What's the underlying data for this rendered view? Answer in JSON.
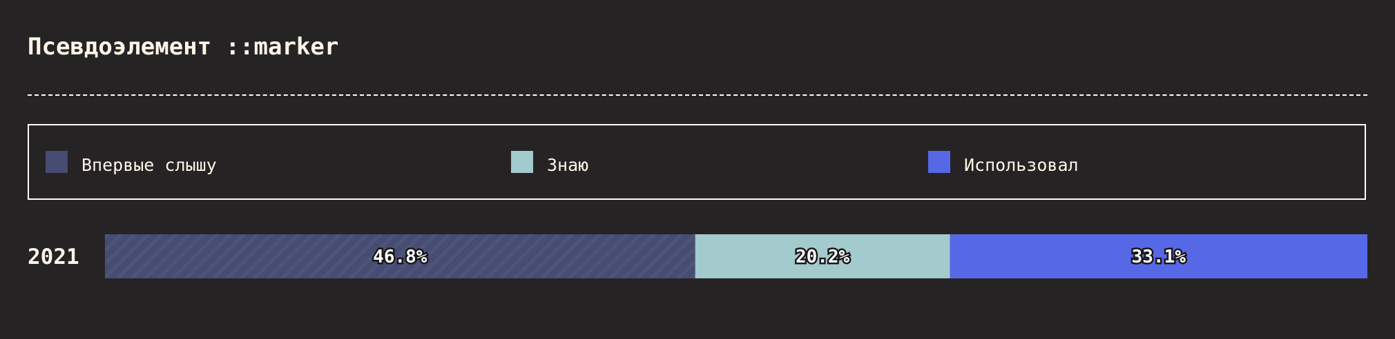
{
  "title": "Псевдоэлемент ::marker",
  "colors": {
    "background": "#262325",
    "text": "#fff5e6",
    "border": "#ffffff"
  },
  "legend": {
    "items": [
      {
        "label": "Впервые слышу",
        "color": "#474c73"
      },
      {
        "label": "Знаю",
        "color": "#a3cacc"
      },
      {
        "label": "Использовал",
        "color": "#5768e6"
      }
    ]
  },
  "chart_data": {
    "type": "bar",
    "stacked": true,
    "orientation": "horizontal",
    "categories": [
      "2021"
    ],
    "series": [
      {
        "name": "Впервые слышу",
        "values": [
          46.8
        ],
        "label": "46.8%",
        "color": "#474c73",
        "pattern": "diagonal-stripes"
      },
      {
        "name": "Знаю",
        "values": [
          20.2
        ],
        "label": "20.2%",
        "color": "#a3cacc"
      },
      {
        "name": "Использовал",
        "values": [
          33.1
        ],
        "label": "33.1%",
        "color": "#5768e6"
      }
    ],
    "xlim": [
      0,
      100.1
    ],
    "legend_position": "top",
    "grid": false
  }
}
